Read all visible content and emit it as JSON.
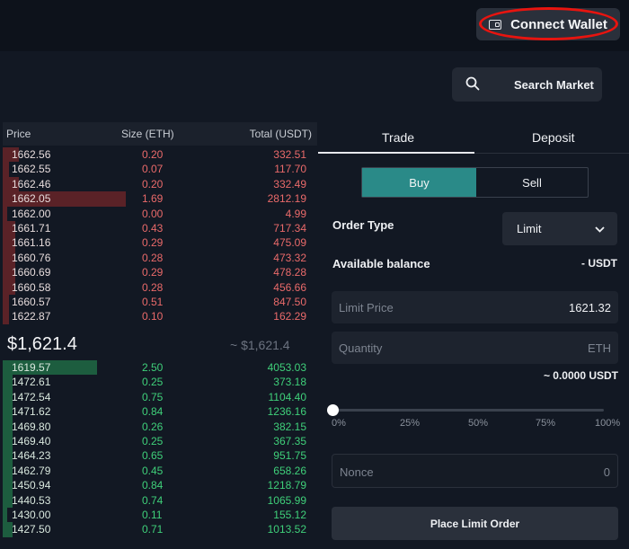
{
  "header": {
    "connect_wallet_label": "Connect Wallet"
  },
  "search": {
    "label": "Search Market"
  },
  "orderbook": {
    "columns": {
      "price": "Price",
      "size": "Size (ETH)",
      "total": "Total (USDT)"
    },
    "asks": [
      {
        "price": "1662.56",
        "size": "0.20",
        "total": "332.51",
        "depth": 0.05
      },
      {
        "price": "1662.55",
        "size": "0.07",
        "total": "117.70",
        "depth": 0.02
      },
      {
        "price": "1662.46",
        "size": "0.20",
        "total": "332.49",
        "depth": 0.05
      },
      {
        "price": "1662.05",
        "size": "1.69",
        "total": "2812.19",
        "depth": 0.39
      },
      {
        "price": "1662.00",
        "size": "0.00",
        "total": "4.99",
        "depth": 0.0
      },
      {
        "price": "1661.71",
        "size": "0.43",
        "total": "717.34",
        "depth": 0.04
      },
      {
        "price": "1661.16",
        "size": "0.29",
        "total": "475.09",
        "depth": 0.04
      },
      {
        "price": "1660.76",
        "size": "0.28",
        "total": "473.32",
        "depth": 0.04
      },
      {
        "price": "1660.69",
        "size": "0.29",
        "total": "478.28",
        "depth": 0.04
      },
      {
        "price": "1660.58",
        "size": "0.28",
        "total": "456.66",
        "depth": 0.04
      },
      {
        "price": "1660.57",
        "size": "0.51",
        "total": "847.50",
        "depth": 0.02
      },
      {
        "price": "1622.87",
        "size": "0.10",
        "total": "162.29",
        "depth": 0.02
      }
    ],
    "mid_price": "$1,621.4",
    "mid_reference": "~ $1,621.4",
    "bids": [
      {
        "price": "1619.57",
        "size": "2.50",
        "total": "4053.03",
        "depth": 0.3
      },
      {
        "price": "1472.61",
        "size": "0.25",
        "total": "373.18",
        "depth": 0.03
      },
      {
        "price": "1472.54",
        "size": "0.75",
        "total": "1104.40",
        "depth": 0.03
      },
      {
        "price": "1471.62",
        "size": "0.84",
        "total": "1236.16",
        "depth": 0.03
      },
      {
        "price": "1469.80",
        "size": "0.26",
        "total": "382.15",
        "depth": 0.03
      },
      {
        "price": "1469.40",
        "size": "0.25",
        "total": "367.35",
        "depth": 0.03
      },
      {
        "price": "1464.23",
        "size": "0.65",
        "total": "951.75",
        "depth": 0.03
      },
      {
        "price": "1462.79",
        "size": "0.45",
        "total": "658.26",
        "depth": 0.03
      },
      {
        "price": "1450.94",
        "size": "0.84",
        "total": "1218.79",
        "depth": 0.03
      },
      {
        "price": "1440.53",
        "size": "0.74",
        "total": "1065.99",
        "depth": 0.03
      },
      {
        "price": "1430.00",
        "size": "0.11",
        "total": "155.12",
        "depth": 0.0
      },
      {
        "price": "1427.50",
        "size": "0.71",
        "total": "1013.52",
        "depth": 0.03
      }
    ]
  },
  "trade_panel": {
    "tabs": [
      "Trade",
      "Deposit"
    ],
    "active_tab": "Trade",
    "side": {
      "buy_label": "Buy",
      "sell_label": "Sell",
      "selected": "Buy"
    },
    "order_type_label": "Order Type",
    "order_type_value": "Limit",
    "available_balance_label": "Available balance",
    "available_balance_value": "- USDT",
    "limit_price": {
      "placeholder": "Limit Price",
      "value": "1621.32"
    },
    "quantity": {
      "placeholder": "Quantity",
      "unit": "ETH"
    },
    "estimate": "~ 0.0000 USDT",
    "slider": {
      "value_percent": 0,
      "ticks": [
        "0%",
        "25%",
        "50%",
        "75%",
        "100%"
      ]
    },
    "nonce": {
      "placeholder": "Nonce",
      "value": "0"
    },
    "submit_label": "Place Limit Order"
  },
  "colors": {
    "accent_buy": "#2a8a88",
    "ask_text": "#ea6a6a",
    "bid_text": "#3fd07a",
    "highlight_circle": "#e8140f"
  }
}
